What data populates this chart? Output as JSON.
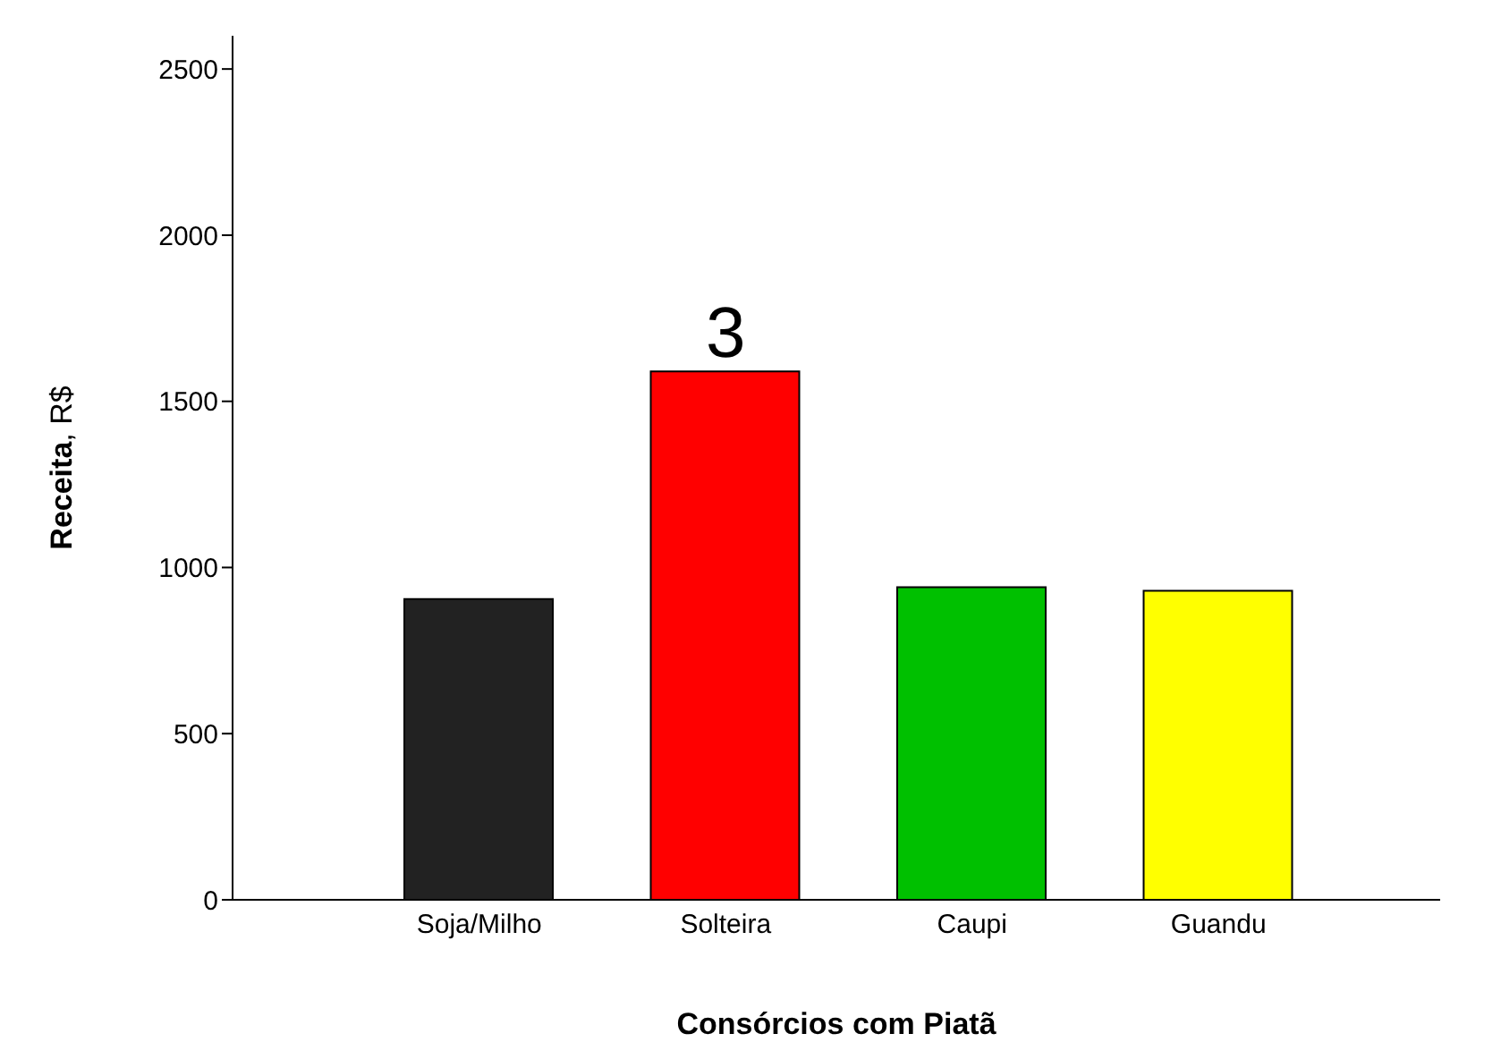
{
  "chart_data": {
    "type": "bar",
    "xlabel": "Consórcios com Piatã",
    "ylabel": "Receita, R$",
    "categories": [
      "Soja/Milho",
      "Solteira",
      "Caupi",
      "Guandu"
    ],
    "values": [
      905,
      1590,
      941,
      930
    ],
    "colors": [
      "#222222",
      "#ff0000",
      "#00c000",
      "#ffff00"
    ],
    "ylim": [
      0,
      2600
    ],
    "yticks": [
      0,
      500,
      1000,
      1500,
      2000,
      2500
    ],
    "grid": false,
    "annotations": [
      {
        "text": "3",
        "x": "Solteira",
        "y": 1590
      }
    ]
  }
}
